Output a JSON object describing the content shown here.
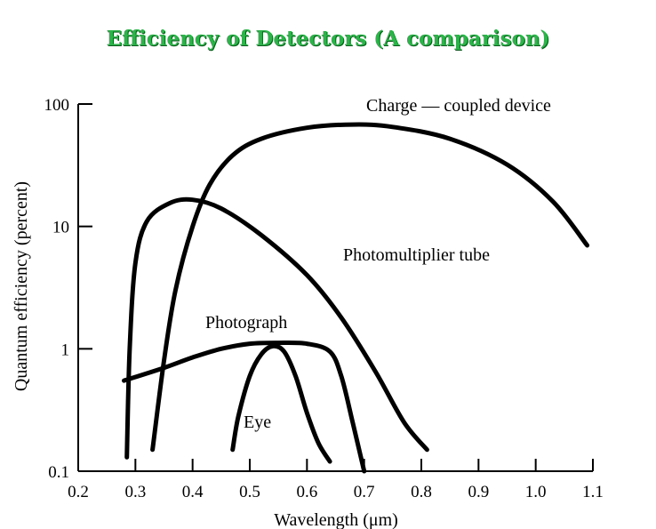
{
  "chart_data": {
    "type": "line",
    "title": "Efficiency of Detectors  (A comparison)",
    "xlabel": "Wavelength (μm)",
    "ylabel": "Quantum efficiency (percent)",
    "xlim": [
      0.2,
      1.1
    ],
    "ylim": [
      0.1,
      100
    ],
    "y_scale": "log",
    "x_ticks": [
      "0.2",
      "0.3",
      "0.4",
      "0.5",
      "0.6",
      "0.7",
      "0.8",
      "0.9",
      "1.0",
      "1.1"
    ],
    "y_ticks": [
      "0.1",
      "1",
      "10",
      "100"
    ],
    "grid": false,
    "legend": "none (curves labeled directly)",
    "series": [
      {
        "name": "Charge — coupled device",
        "x": [
          0.33,
          0.35,
          0.37,
          0.4,
          0.43,
          0.47,
          0.52,
          0.6,
          0.68,
          0.75,
          0.85,
          0.95,
          1.03,
          1.09
        ],
        "y": [
          0.15,
          0.8,
          3.0,
          10.0,
          22.0,
          38.0,
          52.0,
          64.0,
          68.0,
          65.0,
          52.0,
          32.0,
          16.0,
          7.0
        ]
      },
      {
        "name": "Photomultiplier tube",
        "x": [
          0.285,
          0.29,
          0.3,
          0.32,
          0.36,
          0.4,
          0.45,
          0.52,
          0.6,
          0.66,
          0.72,
          0.77,
          0.81
        ],
        "y": [
          0.13,
          1.0,
          5.0,
          11.0,
          15.5,
          16.5,
          14.0,
          8.5,
          4.0,
          1.8,
          0.65,
          0.25,
          0.15
        ]
      },
      {
        "name": "Photograph",
        "x": [
          0.28,
          0.35,
          0.4,
          0.45,
          0.5,
          0.55,
          0.6,
          0.64,
          0.66,
          0.68,
          0.7
        ],
        "y": [
          0.55,
          0.7,
          0.85,
          1.0,
          1.1,
          1.12,
          1.1,
          0.95,
          0.6,
          0.25,
          0.1
        ]
      },
      {
        "name": "Eye",
        "x": [
          0.47,
          0.48,
          0.5,
          0.52,
          0.54,
          0.56,
          0.58,
          0.6,
          0.62,
          0.64
        ],
        "y": [
          0.15,
          0.28,
          0.6,
          0.9,
          1.05,
          0.95,
          0.6,
          0.3,
          0.17,
          0.12
        ]
      }
    ]
  }
}
